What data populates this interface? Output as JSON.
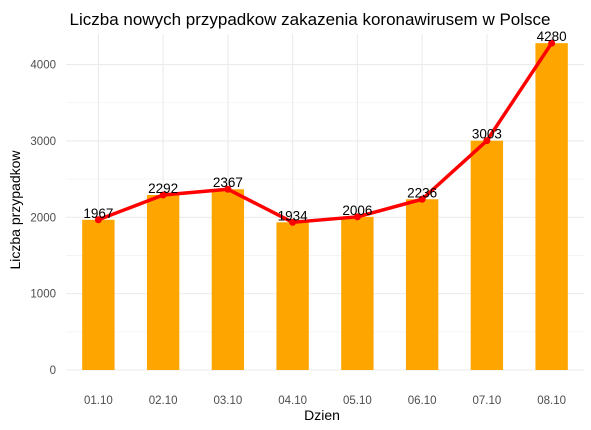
{
  "chart_data": {
    "type": "bar",
    "title": "Liczba nowych przypadkow zakazenia koronawirusem w Polsce",
    "xlabel": "Dzien",
    "ylabel": "Liczba przypadkow",
    "categories": [
      "01.10",
      "02.10",
      "03.10",
      "04.10",
      "05.10",
      "06.10",
      "07.10",
      "08.10"
    ],
    "values": [
      1967,
      2292,
      2367,
      1934,
      2006,
      2236,
      3003,
      4280
    ],
    "ylim": [
      0,
      4400
    ],
    "yticks": [
      0,
      1000,
      2000,
      3000,
      4000
    ],
    "overlay": "line",
    "grid": true,
    "colors": {
      "bar": "#FFA500",
      "line": "#FF0000"
    }
  }
}
